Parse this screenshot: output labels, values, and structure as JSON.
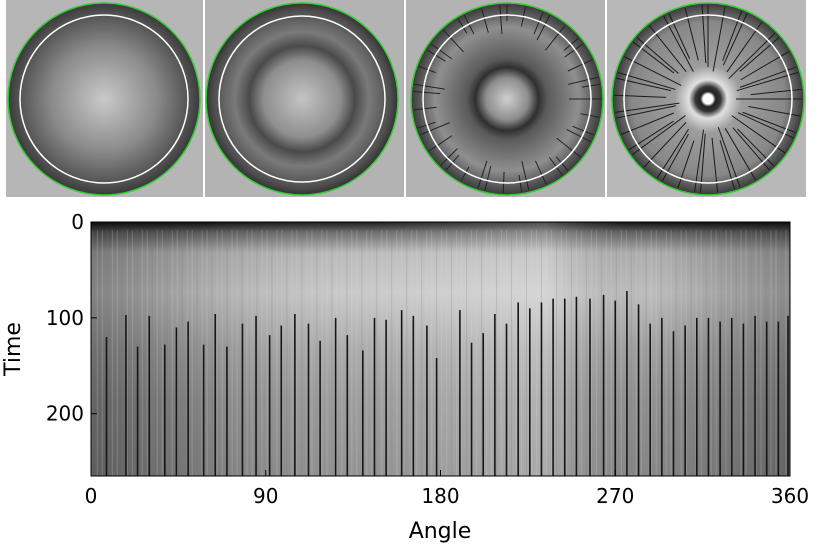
{
  "figure": {
    "panels": [
      {
        "id": "frame-1"
      },
      {
        "id": "frame-2"
      },
      {
        "id": "frame-3"
      },
      {
        "id": "frame-4"
      }
    ],
    "colors": {
      "panel_background": "#b5b5b5",
      "outer_boundary": "#33cc33",
      "reference_circle": "#ffffff",
      "crack_line": "#161616"
    }
  },
  "chart_data": {
    "type": "heatmap",
    "title": "",
    "xlabel": "Angle",
    "ylabel": "Time",
    "xlim": [
      0,
      360
    ],
    "ylim": [
      265,
      0
    ],
    "xticks": [
      0,
      90,
      180,
      270,
      360
    ],
    "yticks": [
      0,
      100,
      200
    ],
    "xtick_labels": [
      "0",
      "90",
      "180",
      "270",
      "360"
    ],
    "ytick_labels": [
      "0",
      "100",
      "200"
    ],
    "colormap": "gray",
    "crack_onsets": [
      {
        "angle": 8,
        "time": 120
      },
      {
        "angle": 18,
        "time": 97
      },
      {
        "angle": 24,
        "time": 130
      },
      {
        "angle": 30,
        "time": 98
      },
      {
        "angle": 38,
        "time": 128
      },
      {
        "angle": 44,
        "time": 110
      },
      {
        "angle": 50,
        "time": 104
      },
      {
        "angle": 58,
        "time": 128
      },
      {
        "angle": 64,
        "time": 96
      },
      {
        "angle": 70,
        "time": 130
      },
      {
        "angle": 78,
        "time": 106
      },
      {
        "angle": 85,
        "time": 98
      },
      {
        "angle": 92,
        "time": 118
      },
      {
        "angle": 98,
        "time": 108
      },
      {
        "angle": 105,
        "time": 96
      },
      {
        "angle": 112,
        "time": 106
      },
      {
        "angle": 118,
        "time": 124
      },
      {
        "angle": 126,
        "time": 100
      },
      {
        "angle": 132,
        "time": 118
      },
      {
        "angle": 140,
        "time": 134
      },
      {
        "angle": 146,
        "time": 100
      },
      {
        "angle": 152,
        "time": 102
      },
      {
        "angle": 160,
        "time": 92
      },
      {
        "angle": 166,
        "time": 98
      },
      {
        "angle": 173,
        "time": 108
      },
      {
        "angle": 178,
        "time": 142
      },
      {
        "angle": 190,
        "time": 92
      },
      {
        "angle": 196,
        "time": 126
      },
      {
        "angle": 202,
        "time": 116
      },
      {
        "angle": 208,
        "time": 96
      },
      {
        "angle": 214,
        "time": 106
      },
      {
        "angle": 220,
        "time": 84
      },
      {
        "angle": 226,
        "time": 90
      },
      {
        "angle": 232,
        "time": 84
      },
      {
        "angle": 238,
        "time": 80
      },
      {
        "angle": 244,
        "time": 80
      },
      {
        "angle": 250,
        "time": 78
      },
      {
        "angle": 257,
        "time": 80
      },
      {
        "angle": 264,
        "time": 76
      },
      {
        "angle": 270,
        "time": 82
      },
      {
        "angle": 276,
        "time": 72
      },
      {
        "angle": 282,
        "time": 86
      },
      {
        "angle": 288,
        "time": 106
      },
      {
        "angle": 294,
        "time": 100
      },
      {
        "angle": 300,
        "time": 114
      },
      {
        "angle": 306,
        "time": 108
      },
      {
        "angle": 312,
        "time": 100
      },
      {
        "angle": 318,
        "time": 100
      },
      {
        "angle": 324,
        "time": 104
      },
      {
        "angle": 330,
        "time": 100
      },
      {
        "angle": 336,
        "time": 106
      },
      {
        "angle": 342,
        "time": 98
      },
      {
        "angle": 348,
        "time": 104
      },
      {
        "angle": 354,
        "time": 104
      },
      {
        "angle": 359,
        "time": 98
      }
    ]
  }
}
